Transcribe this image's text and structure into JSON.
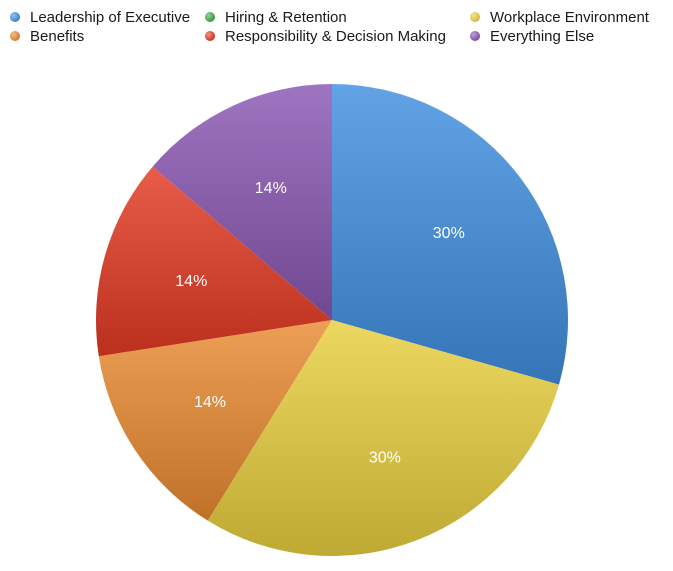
{
  "chart_data": {
    "type": "pie",
    "title": "",
    "legend_position": "top",
    "start_angle_deg": 0,
    "direction": "clockwise",
    "slices": [
      {
        "name": "Leadership of Executive",
        "value": 30,
        "label": "30%",
        "color": "#3f8fe0"
      },
      {
        "name": "Hiring & Retention",
        "value": 0,
        "label": "",
        "color": "#3dab48"
      },
      {
        "name": "Workplace Environment",
        "value": 30,
        "label": "30%",
        "color": "#e8cf3e"
      },
      {
        "name": "Benefits",
        "value": 14,
        "label": "14%",
        "color": "#ea8a31"
      },
      {
        "name": "Responsibility & Decision Making",
        "value": 14,
        "label": "14%",
        "color": "#e33a22"
      },
      {
        "name": "Everything Else",
        "value": 14,
        "label": "14%",
        "color": "#8a56b2"
      }
    ]
  }
}
